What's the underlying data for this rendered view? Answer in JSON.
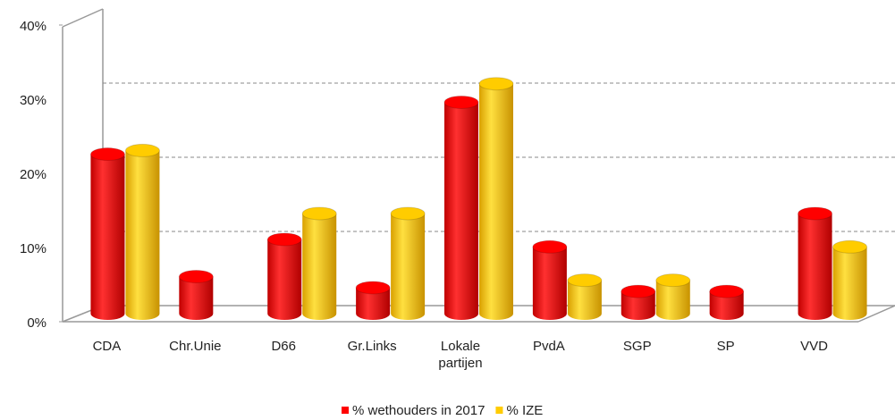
{
  "chart_data": {
    "type": "bar",
    "categories": [
      "CDA",
      "Chr.Unie",
      "D66",
      "Gr.Links",
      "Lokale partijen",
      "PvdA",
      "SGP",
      "SP",
      "VVD"
    ],
    "series": [
      {
        "name": "% wethouders in 2017",
        "color": "#ff0000",
        "values": [
          21.5,
          5,
          10,
          3.5,
          28.5,
          9,
          3,
          3,
          13.5
        ]
      },
      {
        "name": "% IZE",
        "color": "#ffcc00",
        "values": [
          22,
          null,
          13.5,
          13.5,
          31,
          4.5,
          4.5,
          null,
          9
        ]
      }
    ],
    "ylim": [
      0,
      40
    ],
    "yticks": [
      {
        "value": 0,
        "label": "0%"
      },
      {
        "value": 10,
        "label": "10%"
      },
      {
        "value": 20,
        "label": "20%"
      },
      {
        "value": 30,
        "label": "30%"
      },
      {
        "value": 40,
        "label": "40%"
      }
    ],
    "grid": true,
    "legend": "bottom"
  }
}
